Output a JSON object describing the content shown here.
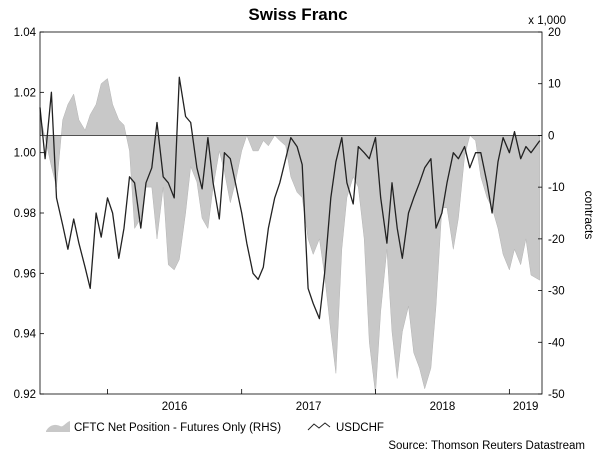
{
  "chart_data": {
    "type": "area",
    "title": "Swiss Franc",
    "source": "Source: Thomson Reuters Datastream",
    "left_axis": {
      "ylim": [
        0.92,
        1.04
      ],
      "ticks": [
        "1.04",
        "1.02",
        "1.00",
        "0.98",
        "0.96",
        "0.94",
        "0.92"
      ]
    },
    "right_axis": {
      "unit": "x 1,000",
      "label": "contracts",
      "ylim": [
        -50,
        20
      ],
      "ticks": [
        "20",
        "10",
        "0",
        "-10",
        "-20",
        "-30",
        "-40",
        "-50"
      ]
    },
    "x_axis": {
      "range": [
        "2015-07-01",
        "2019-03-31"
      ],
      "tick_labels": [
        "2016",
        "2017",
        "2018",
        "2019"
      ]
    },
    "series": [
      {
        "name": "CFTC Net Position - Futures Only (RHS)",
        "axis": "right",
        "style": "area",
        "color": "#c8c8c8",
        "x": [
          "2015-07-01",
          "2015-08-01",
          "2015-08-15",
          "2015-09-01",
          "2015-09-15",
          "2015-10-01",
          "2015-10-15",
          "2015-11-01",
          "2015-11-15",
          "2015-12-01",
          "2015-12-15",
          "2016-01-01",
          "2016-01-15",
          "2016-02-01",
          "2016-02-15",
          "2016-03-01",
          "2016-03-15",
          "2016-04-01",
          "2016-04-15",
          "2016-05-01",
          "2016-05-15",
          "2016-06-01",
          "2016-06-15",
          "2016-07-01",
          "2016-07-15",
          "2016-08-01",
          "2016-08-15",
          "2016-09-01",
          "2016-09-15",
          "2016-10-01",
          "2016-10-15",
          "2016-11-01",
          "2016-11-15",
          "2016-12-01",
          "2016-12-15",
          "2017-01-01",
          "2017-01-15",
          "2017-02-01",
          "2017-02-15",
          "2017-03-01",
          "2017-03-15",
          "2017-04-01",
          "2017-04-15",
          "2017-05-01",
          "2017-05-15",
          "2017-06-01",
          "2017-06-15",
          "2017-07-01",
          "2017-07-15",
          "2017-08-01",
          "2017-08-15",
          "2017-09-01",
          "2017-09-15",
          "2017-10-01",
          "2017-10-15",
          "2017-11-01",
          "2017-11-15",
          "2017-12-01",
          "2017-12-15",
          "2018-01-01",
          "2018-01-15",
          "2018-02-01",
          "2018-02-15",
          "2018-03-01",
          "2018-03-15",
          "2018-04-01",
          "2018-04-15",
          "2018-05-01",
          "2018-05-15",
          "2018-06-01",
          "2018-06-15",
          "2018-07-01",
          "2018-07-15",
          "2018-08-01",
          "2018-08-15",
          "2018-09-01",
          "2018-09-15",
          "2018-10-01",
          "2018-10-15",
          "2018-11-01",
          "2018-11-15",
          "2018-12-01",
          "2018-12-15",
          "2019-01-01",
          "2019-01-15",
          "2019-02-01",
          "2019-02-15",
          "2019-03-01",
          "2019-03-25"
        ],
        "values": [
          4,
          -6,
          -10,
          3,
          6,
          8,
          3,
          1,
          4,
          6,
          10,
          11,
          6,
          3,
          2,
          -3,
          -18,
          -16,
          -10,
          -10,
          -20,
          -10,
          -25,
          -26,
          -24,
          -15,
          -6,
          -9,
          -16,
          -18,
          -10,
          -3,
          -7,
          -13,
          -9,
          -3,
          0,
          -3,
          -3,
          -1,
          -2,
          0,
          -1,
          -2,
          -8,
          -11,
          -12,
          -20,
          -23,
          -20,
          -27,
          -38,
          -46,
          -22,
          -12,
          -8,
          -10,
          -20,
          -40,
          -50,
          -34,
          -22,
          -38,
          -47,
          -38,
          -33,
          -42,
          -45,
          -49,
          -45,
          -33,
          -14,
          -14,
          -22,
          -16,
          -4,
          0,
          -1,
          -8,
          -12,
          -14,
          -18,
          -23,
          -26,
          -22,
          -25,
          -20,
          -27,
          -28
        ]
      },
      {
        "name": "USDCHF",
        "axis": "left",
        "style": "line",
        "color": "#222222",
        "x": [
          "2015-07-01",
          "2015-07-15",
          "2015-08-01",
          "2015-08-15",
          "2015-09-01",
          "2015-09-15",
          "2015-10-01",
          "2015-10-15",
          "2015-11-01",
          "2015-11-15",
          "2015-12-01",
          "2015-12-15",
          "2016-01-01",
          "2016-01-15",
          "2016-02-01",
          "2016-02-15",
          "2016-03-01",
          "2016-03-15",
          "2016-04-01",
          "2016-04-15",
          "2016-05-01",
          "2016-05-15",
          "2016-06-01",
          "2016-06-15",
          "2016-07-01",
          "2016-07-15",
          "2016-08-01",
          "2016-08-15",
          "2016-09-01",
          "2016-09-15",
          "2016-10-01",
          "2016-10-15",
          "2016-11-01",
          "2016-11-15",
          "2016-12-01",
          "2016-12-15",
          "2017-01-01",
          "2017-01-15",
          "2017-02-01",
          "2017-02-15",
          "2017-03-01",
          "2017-03-15",
          "2017-04-01",
          "2017-04-15",
          "2017-05-01",
          "2017-05-15",
          "2017-06-01",
          "2017-06-15",
          "2017-07-01",
          "2017-07-15",
          "2017-08-01",
          "2017-08-15",
          "2017-09-01",
          "2017-09-15",
          "2017-10-01",
          "2017-10-15",
          "2017-11-01",
          "2017-11-15",
          "2017-12-01",
          "2017-12-15",
          "2018-01-01",
          "2018-01-15",
          "2018-02-01",
          "2018-02-15",
          "2018-03-01",
          "2018-03-15",
          "2018-04-01",
          "2018-04-15",
          "2018-05-01",
          "2018-05-15",
          "2018-06-01",
          "2018-06-15",
          "2018-07-01",
          "2018-07-15",
          "2018-08-01",
          "2018-08-15",
          "2018-09-01",
          "2018-09-15",
          "2018-10-01",
          "2018-10-15",
          "2018-11-01",
          "2018-11-15",
          "2018-12-01",
          "2018-12-15",
          "2019-01-01",
          "2019-01-15",
          "2019-02-01",
          "2019-02-15",
          "2019-03-01",
          "2019-03-25"
        ],
        "values": [
          1.015,
          0.998,
          1.02,
          0.985,
          0.976,
          0.968,
          0.978,
          0.97,
          0.962,
          0.955,
          0.98,
          0.972,
          0.985,
          0.98,
          0.965,
          0.975,
          0.992,
          0.99,
          0.975,
          0.99,
          0.995,
          1.01,
          0.992,
          0.99,
          0.985,
          1.025,
          1.012,
          1.01,
          0.995,
          0.988,
          1.005,
          0.99,
          0.978,
          1.0,
          0.998,
          0.99,
          0.98,
          0.97,
          0.96,
          0.958,
          0.962,
          0.975,
          0.985,
          0.99,
          0.998,
          1.005,
          1.002,
          0.996,
          0.955,
          0.95,
          0.945,
          0.96,
          0.985,
          0.997,
          1.005,
          0.99,
          0.983,
          1.002,
          1.0,
          0.998,
          1.005,
          0.985,
          0.97,
          0.99,
          0.975,
          0.965,
          0.98,
          0.985,
          0.99,
          0.995,
          0.998,
          0.975,
          0.98,
          0.99,
          1.0,
          0.998,
          1.002,
          0.995,
          1.0,
          1.0,
          0.99,
          0.98,
          0.997,
          1.005,
          1.0,
          1.007,
          0.998,
          1.002,
          1.0,
          1.004
        ]
      }
    ],
    "legend_position": "bottom-left"
  }
}
